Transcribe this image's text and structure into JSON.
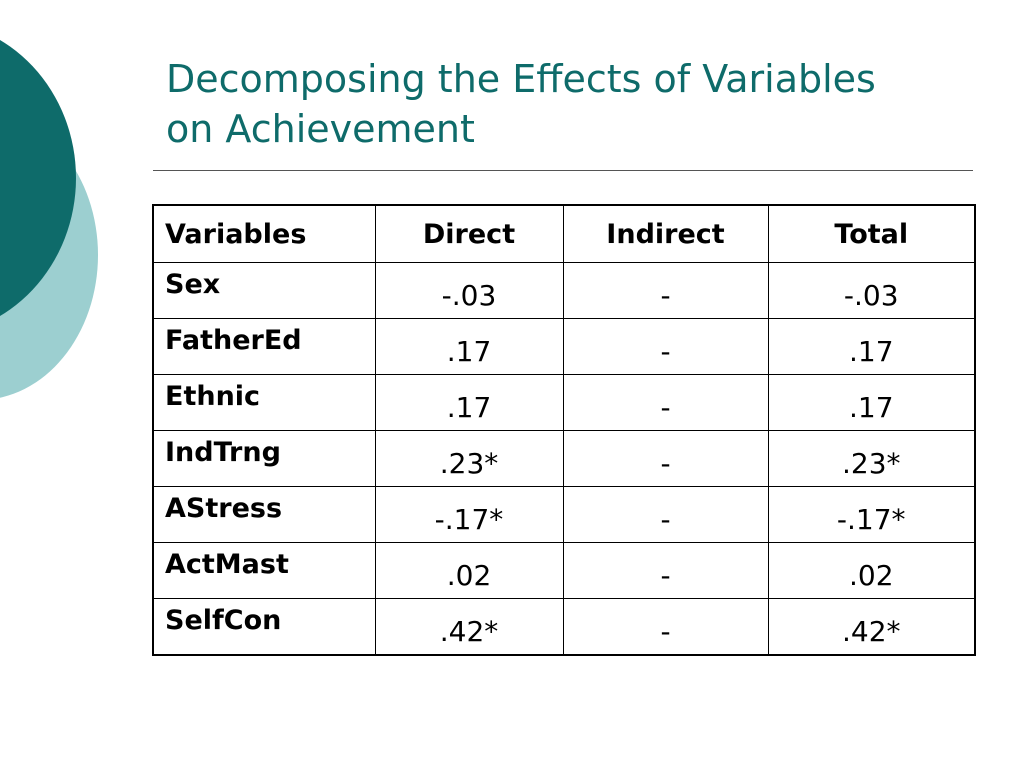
{
  "title": {
    "line1": "Decomposing the Effects of Variables",
    "line2": "on Achievement"
  },
  "colors": {
    "title": "#0e6b6a",
    "circle_dark": "#0e6b6a",
    "circle_light": "#9ccfd0"
  },
  "table": {
    "headers": [
      "Variables",
      "Direct",
      "Indirect",
      "Total"
    ],
    "rows": [
      {
        "variable": "Sex",
        "direct": "-.03",
        "indirect": "-",
        "total": "-.03"
      },
      {
        "variable": "FatherEd",
        "direct": ".17",
        "indirect": "-",
        "total": ".17"
      },
      {
        "variable": "Ethnic",
        "direct": ".17",
        "indirect": "-",
        "total": ".17"
      },
      {
        "variable": "IndTrng",
        "direct": ".23*",
        "indirect": "-",
        "total": ".23*"
      },
      {
        "variable": "AStress",
        "direct": "-.17*",
        "indirect": "-",
        "total": "-.17*"
      },
      {
        "variable": "ActMast",
        "direct": ".02",
        "indirect": "-",
        "total": ".02"
      },
      {
        "variable": "SelfCon",
        "direct": ".42*",
        "indirect": "-",
        "total": ".42*"
      }
    ]
  }
}
